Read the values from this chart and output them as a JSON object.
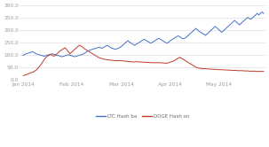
{
  "title": "",
  "xlabel": "",
  "ylabel": "",
  "ylim": [
    0,
    300
  ],
  "yticks": [
    0,
    50,
    100,
    150,
    200,
    250,
    300
  ],
  "background_color": "#ffffff",
  "grid_color": "#dddddd",
  "ltc_color": "#4472c4",
  "doge_color": "#c0392b",
  "legend_labels": [
    "LTC Hash ba",
    "DOGE Hash on"
  ],
  "xtick_labels": [
    "Jan 2014",
    "Feb 2014",
    "Mar 2014",
    "Apr 2014",
    "May 2014"
  ],
  "xtick_positions": [
    0,
    30,
    61,
    91,
    121
  ],
  "ltc_data": [
    100,
    103,
    106,
    108,
    110,
    112,
    114,
    110,
    106,
    104,
    102,
    100,
    98,
    96,
    98,
    100,
    102,
    104,
    106,
    104,
    102,
    100,
    98,
    96,
    94,
    96,
    98,
    100,
    102,
    100,
    98,
    96,
    94,
    96,
    98,
    100,
    102,
    104,
    108,
    112,
    116,
    120,
    122,
    124,
    126,
    128,
    130,
    132,
    130,
    128,
    132,
    136,
    140,
    136,
    132,
    128,
    126,
    124,
    126,
    128,
    132,
    136,
    142,
    148,
    154,
    158,
    152,
    148,
    144,
    140,
    144,
    148,
    152,
    156,
    160,
    164,
    160,
    156,
    152,
    148,
    152,
    156,
    160,
    164,
    168,
    164,
    160,
    156,
    152,
    148,
    152,
    158,
    162,
    166,
    170,
    174,
    178,
    174,
    170,
    166,
    168,
    172,
    178,
    184,
    190,
    196,
    202,
    208,
    202,
    196,
    192,
    188,
    184,
    180,
    186,
    192,
    198,
    204,
    210,
    216,
    210,
    204,
    198,
    192,
    198,
    204,
    210,
    216,
    222,
    228,
    234,
    240,
    234,
    228,
    222,
    228,
    234,
    240,
    246,
    252,
    248,
    244,
    250,
    256,
    262,
    268,
    262,
    268,
    274,
    268
  ],
  "doge_data": [
    18,
    20,
    22,
    25,
    28,
    30,
    32,
    36,
    40,
    46,
    54,
    62,
    72,
    82,
    90,
    96,
    100,
    104,
    100,
    96,
    100,
    106,
    112,
    118,
    122,
    126,
    130,
    122,
    114,
    106,
    112,
    118,
    124,
    130,
    136,
    140,
    136,
    132,
    126,
    122,
    118,
    114,
    110,
    106,
    102,
    98,
    94,
    90,
    88,
    86,
    84,
    83,
    82,
    81,
    80,
    80,
    79,
    78,
    78,
    78,
    79,
    78,
    77,
    76,
    76,
    75,
    74,
    74,
    73,
    73,
    74,
    74,
    73,
    73,
    72,
    72,
    72,
    71,
    71,
    70,
    70,
    70,
    70,
    70,
    70,
    70,
    69,
    69,
    68,
    68,
    70,
    72,
    74,
    76,
    80,
    84,
    88,
    92,
    88,
    84,
    80,
    76,
    72,
    68,
    64,
    60,
    56,
    52,
    50,
    48,
    47,
    46,
    46,
    46,
    45,
    45,
    44,
    44,
    44,
    43,
    43,
    42,
    42,
    42,
    41,
    41,
    41,
    40,
    40,
    40,
    39,
    39,
    39,
    38,
    38,
    38,
    38,
    37,
    37,
    37,
    36,
    36,
    36,
    36,
    36,
    35,
    35,
    35,
    35,
    35
  ]
}
